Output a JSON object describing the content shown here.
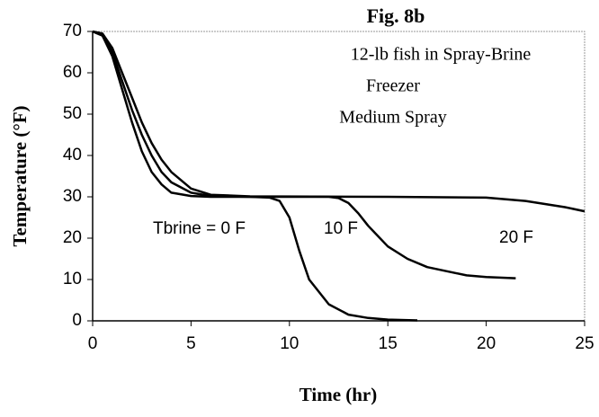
{
  "chart_data": {
    "type": "line",
    "title": "Fig. 8b",
    "annotations": [
      "12-lb fish in Spray-Brine",
      "Freezer",
      "Medium Spray"
    ],
    "x_label": "Time (hr)",
    "y_label": "Temperature (°F)",
    "xlim": [
      0,
      25
    ],
    "xticks": [
      0,
      5,
      10,
      15,
      20,
      25
    ],
    "ylim": [
      0,
      70
    ],
    "yticks": [
      0,
      10,
      20,
      30,
      40,
      50,
      60,
      70
    ],
    "grid": false,
    "series": [
      {
        "name": "Tbrine = 0 F",
        "color": "#000000",
        "x": [
          0,
          0.5,
          1,
          1.5,
          2,
          2.5,
          3,
          3.5,
          4,
          5,
          6,
          8,
          9,
          9.5,
          10,
          10.5,
          11,
          12,
          13,
          14,
          15,
          16.5
        ],
        "values": [
          70,
          69,
          64,
          56,
          48,
          41,
          36,
          33,
          31,
          30.2,
          30,
          30,
          29.8,
          29,
          25,
          17,
          10,
          4,
          1.5,
          0.7,
          0.3,
          0.1
        ]
      },
      {
        "name": "10 F",
        "color": "#000000",
        "x": [
          0,
          0.5,
          1,
          1.5,
          2,
          2.5,
          3,
          3.5,
          4,
          5,
          6,
          8,
          12,
          12.5,
          13,
          13.5,
          14,
          15,
          16,
          17,
          18,
          19,
          20,
          21.5
        ],
        "values": [
          70,
          69,
          65,
          58,
          51,
          45,
          40,
          36,
          33.5,
          31,
          30.2,
          30,
          30,
          29.7,
          28.5,
          26,
          23,
          18,
          15,
          13,
          12,
          11,
          10.6,
          10.3
        ]
      },
      {
        "name": "20 F",
        "color": "#000000",
        "x": [
          0,
          0.5,
          1,
          1.5,
          2,
          2.5,
          3,
          3.5,
          4,
          5,
          6,
          8,
          15,
          20,
          22,
          24,
          25
        ],
        "values": [
          70,
          69.5,
          66,
          60,
          54,
          48,
          43,
          39,
          36,
          32,
          30.5,
          30.1,
          30,
          29.8,
          29,
          27.5,
          26.5
        ]
      }
    ]
  }
}
